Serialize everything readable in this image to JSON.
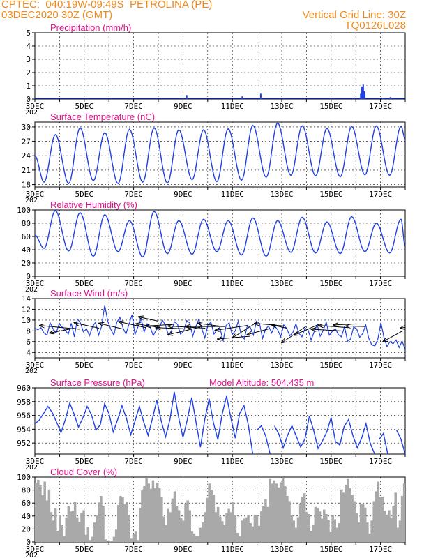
{
  "header": {
    "line1_left": "CPTEC:  040:19W-09:49S  PETROLINA (PE)",
    "line2_left": "03DEC2020 30Z (GMT)",
    "line1_right": "Vertical Grid Line: 30Z",
    "line2_right": "TQ0126L028"
  },
  "colors": {
    "header": "#f08a1c",
    "title": "#e0108a",
    "series": "#1e3fe6",
    "arrow": "#000000",
    "cloud": "#a9a9a9",
    "grid": "#000000"
  },
  "x_axis": {
    "tick_labels": [
      "3DEC",
      "5DEC",
      "7DEC",
      "9DEC",
      "11DEC",
      "13DEC",
      "15DEC",
      "17DEC"
    ],
    "tick_positions_days": [
      0,
      2,
      4,
      6,
      8,
      10,
      12,
      14
    ],
    "range_days": [
      0,
      15
    ],
    "cut_label": "202"
  },
  "chart_data": [
    {
      "id": "precipitation",
      "type": "bar",
      "title": "Precipitation (mm/h)",
      "ylim": [
        0,
        5
      ],
      "yticks": [
        0,
        1,
        2,
        3,
        4,
        5
      ],
      "bars": [
        [
          6.15,
          0.3
        ],
        [
          8.4,
          0.2
        ],
        [
          9.15,
          0.4
        ],
        [
          13.2,
          0.4
        ],
        [
          13.25,
          0.9
        ],
        [
          13.3,
          1.1
        ],
        [
          13.35,
          0.6
        ],
        [
          14.1,
          0.1
        ],
        [
          14.4,
          0.15
        ]
      ]
    },
    {
      "id": "temperature",
      "type": "line",
      "title": "Surface Temperature (nC)",
      "ylim": [
        17.5,
        31
      ],
      "yticks": [
        18,
        21,
        24,
        27,
        30
      ],
      "min_day": [
        18.5,
        18.2,
        18.8,
        18.2,
        18.5,
        18.3,
        19.0,
        18.6,
        18.9,
        19.5,
        19.9,
        19.8,
        19.6,
        20.0,
        19.9,
        19.5
      ],
      "max_day": [
        28.4,
        29.8,
        28.8,
        29.5,
        29.8,
        29.4,
        29.4,
        29.6,
        30.3,
        30.8,
        30.2,
        29.7,
        30.1,
        30.2,
        30.1
      ],
      "start_value": 24.0,
      "end_value": 27.5
    },
    {
      "id": "humidity",
      "type": "line",
      "title": "Relative Humidity (%)",
      "ylim": [
        0,
        100
      ],
      "yticks": [
        0,
        20,
        40,
        60,
        80,
        100
      ],
      "min_day": [
        42,
        38,
        30,
        37,
        29,
        34,
        33,
        37,
        32,
        30,
        36,
        35,
        34,
        37,
        35
      ],
      "max_day": [
        99,
        96,
        93,
        84,
        98,
        84,
        86,
        84,
        88,
        84,
        89,
        82,
        90,
        80,
        86
      ],
      "start_value": 62,
      "end_value": 45
    },
    {
      "id": "wind",
      "type": "line",
      "title": "Surface Wind (m/s)",
      "ylim": [
        3,
        14
      ],
      "yticks": [
        4,
        6,
        8,
        10,
        12,
        14
      ],
      "series": [
        8.5,
        8.2,
        8.6,
        7.6,
        7.2,
        9.5,
        8.4,
        7.6,
        9.3,
        8.7,
        8.1,
        7.4,
        9.4,
        6.9,
        10.2,
        9.5,
        7.8,
        8.4,
        7.1,
        8.8,
        9.6,
        7.2,
        8.9,
        12.8,
        9.8,
        8.3,
        7.2,
        9.6,
        10.5,
        8.6,
        7.4,
        9.2,
        11.0,
        7.3,
        8.8,
        10.3,
        7.8,
        9.3,
        8.7,
        7.1,
        8.2,
        8.6,
        10.0,
        9.1,
        7.2,
        8.0,
        9.7,
        9.2,
        7.4,
        7.9,
        9.9,
        9.5,
        7.0,
        8.8,
        10.1,
        8.4,
        6.7,
        9.1,
        9.6,
        7.4,
        8.2,
        8.5,
        6.1,
        9.0,
        9.5,
        7.3,
        8.0,
        9.8,
        7.1,
        6.5,
        9.0,
        8.6,
        7.2,
        9.8,
        9.4,
        6.6,
        8.3,
        8.9,
        7.6,
        8.9,
        8.2,
        6.9,
        9.1,
        8.4,
        7.1,
        7.7,
        9.3,
        7.5,
        6.9,
        8.5,
        8.2,
        6.3,
        7.8,
        9.2,
        7.0,
        8.1,
        9.6,
        7.2,
        7.9,
        8.4,
        7.3,
        6.9,
        8.8,
        6.1,
        6.5,
        8.7,
        8.4,
        6.8,
        7.5,
        9.1,
        6.6,
        5.4,
        5.2,
        6.5,
        9.5,
        6.8,
        5.1,
        6.0,
        5.6,
        6.3,
        4.9,
        6.1,
        4.5
      ],
      "arrows": [
        [
          0.2,
          9.0,
          1.8,
          8.3
        ],
        [
          0.6,
          7.6,
          1.6,
          8.5
        ],
        [
          1.6,
          9.5,
          2.6,
          8.5
        ],
        [
          2.6,
          9.4,
          3.6,
          8.3
        ],
        [
          3.4,
          9.7,
          4.5,
          8.6
        ],
        [
          4.1,
          9.3,
          5.1,
          8.6
        ],
        [
          4.2,
          10.6,
          5.0,
          9.8
        ],
        [
          4.5,
          8.9,
          5.6,
          9.2
        ],
        [
          4.9,
          8.6,
          6.0,
          8.4
        ],
        [
          5.4,
          8.9,
          6.9,
          8.5
        ],
        [
          5.4,
          7.3,
          6.7,
          8.7
        ],
        [
          6.1,
          8.8,
          7.7,
          8.8
        ],
        [
          6.6,
          9.4,
          7.6,
          8.8
        ],
        [
          7.3,
          8.1,
          8.6,
          9.0
        ],
        [
          7.4,
          6.5,
          8.7,
          7.0
        ],
        [
          8.0,
          6.7,
          9.0,
          9.6
        ],
        [
          8.6,
          7.3,
          9.5,
          8.4
        ],
        [
          8.9,
          9.4,
          10.1,
          8.9
        ],
        [
          9.6,
          9.1,
          10.2,
          8.5
        ],
        [
          10.0,
          5.8,
          11.0,
          8.9
        ],
        [
          10.5,
          7.2,
          11.5,
          9.2
        ],
        [
          11.2,
          8.3,
          12.4,
          8.0
        ],
        [
          11.5,
          9.0,
          12.7,
          8.6
        ],
        [
          12.1,
          9.1,
          13.1,
          9.3
        ],
        [
          12.6,
          8.9,
          13.4,
          8.8
        ],
        [
          14.1,
          6.0,
          14.9,
          8.0
        ],
        [
          14.8,
          8.5,
          15.8,
          9.2
        ]
      ]
    },
    {
      "id": "pressure",
      "type": "line",
      "title": "Surface Pressure (hPa)",
      "annotation": "Model Altitude: 504.435 m",
      "ylim": [
        950.4,
        960
      ],
      "yticks": [
        952,
        954,
        956,
        958,
        960
      ],
      "series": [
        954.8,
        955.3,
        956.3,
        957.3,
        956.4,
        955.0,
        953.5,
        955.4,
        957.8,
        956.2,
        954.3,
        955.6,
        957.3,
        956.1,
        953.9,
        954.6,
        957.7,
        956.3,
        953.6,
        955.4,
        957.4,
        955.6,
        953.2,
        955.2,
        957.3,
        955.0,
        953.1,
        955.6,
        958.2,
        955.2,
        952.9,
        955.4,
        959.4,
        955.7,
        952.8,
        955.4,
        958.6,
        955.0,
        951.4,
        955.4,
        958.4,
        954.9,
        952.5,
        956.2,
        958.8,
        955.6,
        952.7,
        956.3,
        957.4,
        954.6,
        950.8,
        953.9,
        954.5,
        953.0,
        950.9,
        954.5,
        953.3,
        951.3,
        953.1,
        954.5,
        953.0,
        951.4,
        952.6,
        955.9,
        953.8,
        951.2,
        952.3,
        953.6,
        955.7,
        952.2,
        951.7,
        954.4,
        955.4,
        953.1,
        951.3,
        952.7,
        954.8,
        951.9,
        950.9,
        952.5,
        953.4,
        950.9,
        950.7,
        953.9,
        952.6,
        950.5
      ],
      "cut_below": 951.0
    },
    {
      "id": "cloud",
      "type": "area",
      "title": "Cloud Cover (%)",
      "ylim": [
        0,
        100
      ],
      "yticks": [
        0,
        20,
        40,
        60,
        80,
        100
      ],
      "series": [
        91,
        96,
        88,
        72,
        93,
        64,
        81,
        46,
        33,
        52,
        17,
        41,
        26,
        9,
        38,
        55,
        47,
        48,
        62,
        38,
        31,
        45,
        49,
        11,
        23,
        3,
        8,
        30,
        42,
        61,
        71,
        55,
        4,
        0,
        2,
        2,
        8,
        19,
        57,
        71,
        69,
        58,
        62,
        42,
        5,
        13,
        16,
        3,
        52,
        81,
        86,
        98,
        90,
        82,
        95,
        83,
        91,
        84,
        70,
        39,
        26,
        51,
        46,
        67,
        78,
        55,
        49,
        37,
        33,
        58,
        64,
        49,
        16,
        13,
        9,
        9,
        22,
        30,
        46,
        68,
        90,
        80,
        73,
        46,
        54,
        39,
        32,
        26,
        45,
        51,
        46,
        61,
        41,
        14,
        9,
        33,
        36,
        38,
        42,
        29,
        24,
        42,
        41,
        25,
        47,
        56,
        66,
        54,
        97,
        90,
        95,
        90,
        84,
        92,
        98,
        86,
        71,
        63,
        42,
        33,
        22,
        38,
        58,
        70,
        75,
        46,
        43,
        17,
        27,
        54,
        52,
        47,
        36,
        50,
        43,
        34,
        15,
        41,
        35,
        22,
        29,
        81,
        76,
        88,
        97,
        83,
        73,
        63,
        44,
        30,
        58,
        59,
        53,
        30,
        13,
        33,
        63,
        78,
        93,
        69,
        70,
        48,
        42,
        49,
        37,
        56,
        76,
        22,
        33,
        71,
        90
      ]
    }
  ]
}
